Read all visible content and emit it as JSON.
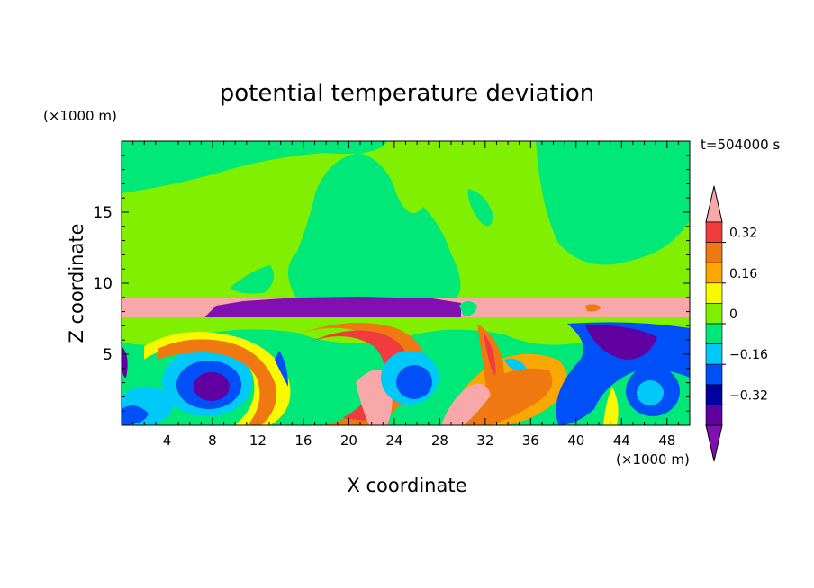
{
  "chart_data": {
    "type": "heatmap",
    "title": "potential temperature deviation",
    "xlabel": "X coordinate",
    "ylabel": "Z coordinate",
    "x_unit": "(×1000 m)",
    "y_unit": "(×1000 m)",
    "time_label": "t=504000 s",
    "xlim": [
      0,
      50
    ],
    "ylim": [
      0,
      20
    ],
    "x_ticks": [
      4,
      8,
      12,
      16,
      20,
      24,
      28,
      32,
      36,
      40,
      44,
      48
    ],
    "y_ticks": [
      5,
      10,
      15
    ],
    "colorbar": {
      "levels": [
        -0.4,
        -0.32,
        -0.24,
        -0.16,
        -0.08,
        0,
        0.08,
        0.16,
        0.24,
        0.32,
        0.4
      ],
      "labeled_ticks": [
        "0.32",
        "0.16",
        "0",
        "−0.16",
        "−0.32"
      ],
      "colors_top_to_bottom": [
        "#f8a8a8",
        "#f03c3c",
        "#f07810",
        "#f8a800",
        "#f8f800",
        "#80f000",
        "#00e878",
        "#00c8f8",
        "#0050f8",
        "#0000a0",
        "#6000a0",
        "#8010b0"
      ],
      "extend": "both"
    },
    "regions": {
      "upper": "green (~0 to 0.08) with lighter-green and cyan-green patches",
      "tropopause_band": "pink (>0.4) near z≈8–9, with purple (<-0.4) strip from x≈6 to 29",
      "lower": "mixed eddies -0.4 to 0.4 below z≈7.5"
    }
  }
}
